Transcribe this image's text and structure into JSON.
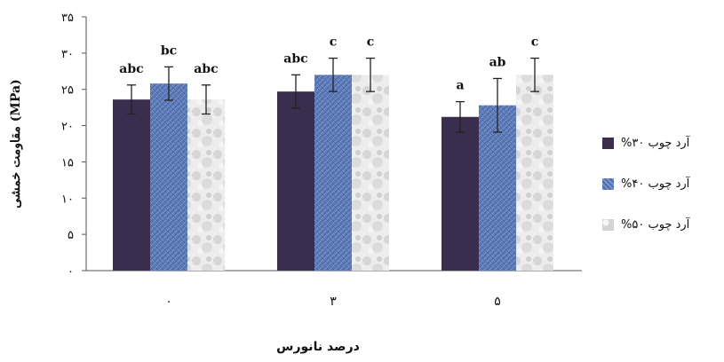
{
  "chart_data": {
    "type": "bar",
    "xlabel": "درصد نانورس",
    "ylabel": "مقاومت خمشی (MPa)",
    "categories": [
      "۰",
      "۳",
      "۵"
    ],
    "ylim": [
      0,
      35
    ],
    "yticks": [
      0,
      5,
      10,
      15,
      20,
      25,
      30,
      35
    ],
    "ytick_labels": [
      "۰",
      "۵",
      "۱۰",
      "۱۵",
      "۲۰",
      "۲۵",
      "۳۰",
      "۳۵"
    ],
    "grid": false,
    "legend_position": "right",
    "series": [
      {
        "name": "آرد چوب ۳۰%",
        "color": "#3b2d4e",
        "pattern": "solid",
        "values": [
          23.6,
          24.7,
          21.2
        ],
        "errors": [
          2.0,
          2.3,
          2.1
        ],
        "labels": [
          "abc",
          "abc",
          "a"
        ]
      },
      {
        "name": "آرد چوب ۴۰%",
        "color": "#5b79b6",
        "pattern": "blue-weave",
        "values": [
          25.8,
          27.0,
          22.8
        ],
        "errors": [
          2.3,
          2.3,
          3.7
        ],
        "labels": [
          "bc",
          "c",
          "ab"
        ]
      },
      {
        "name": "آرد چوب ۵۰%",
        "color": "#e6e6e6",
        "pattern": "grey-marble",
        "values": [
          23.6,
          27.0,
          27.0
        ],
        "errors": [
          2.0,
          2.3,
          2.3
        ],
        "labels": [
          "abc",
          "c",
          "c"
        ]
      }
    ]
  }
}
